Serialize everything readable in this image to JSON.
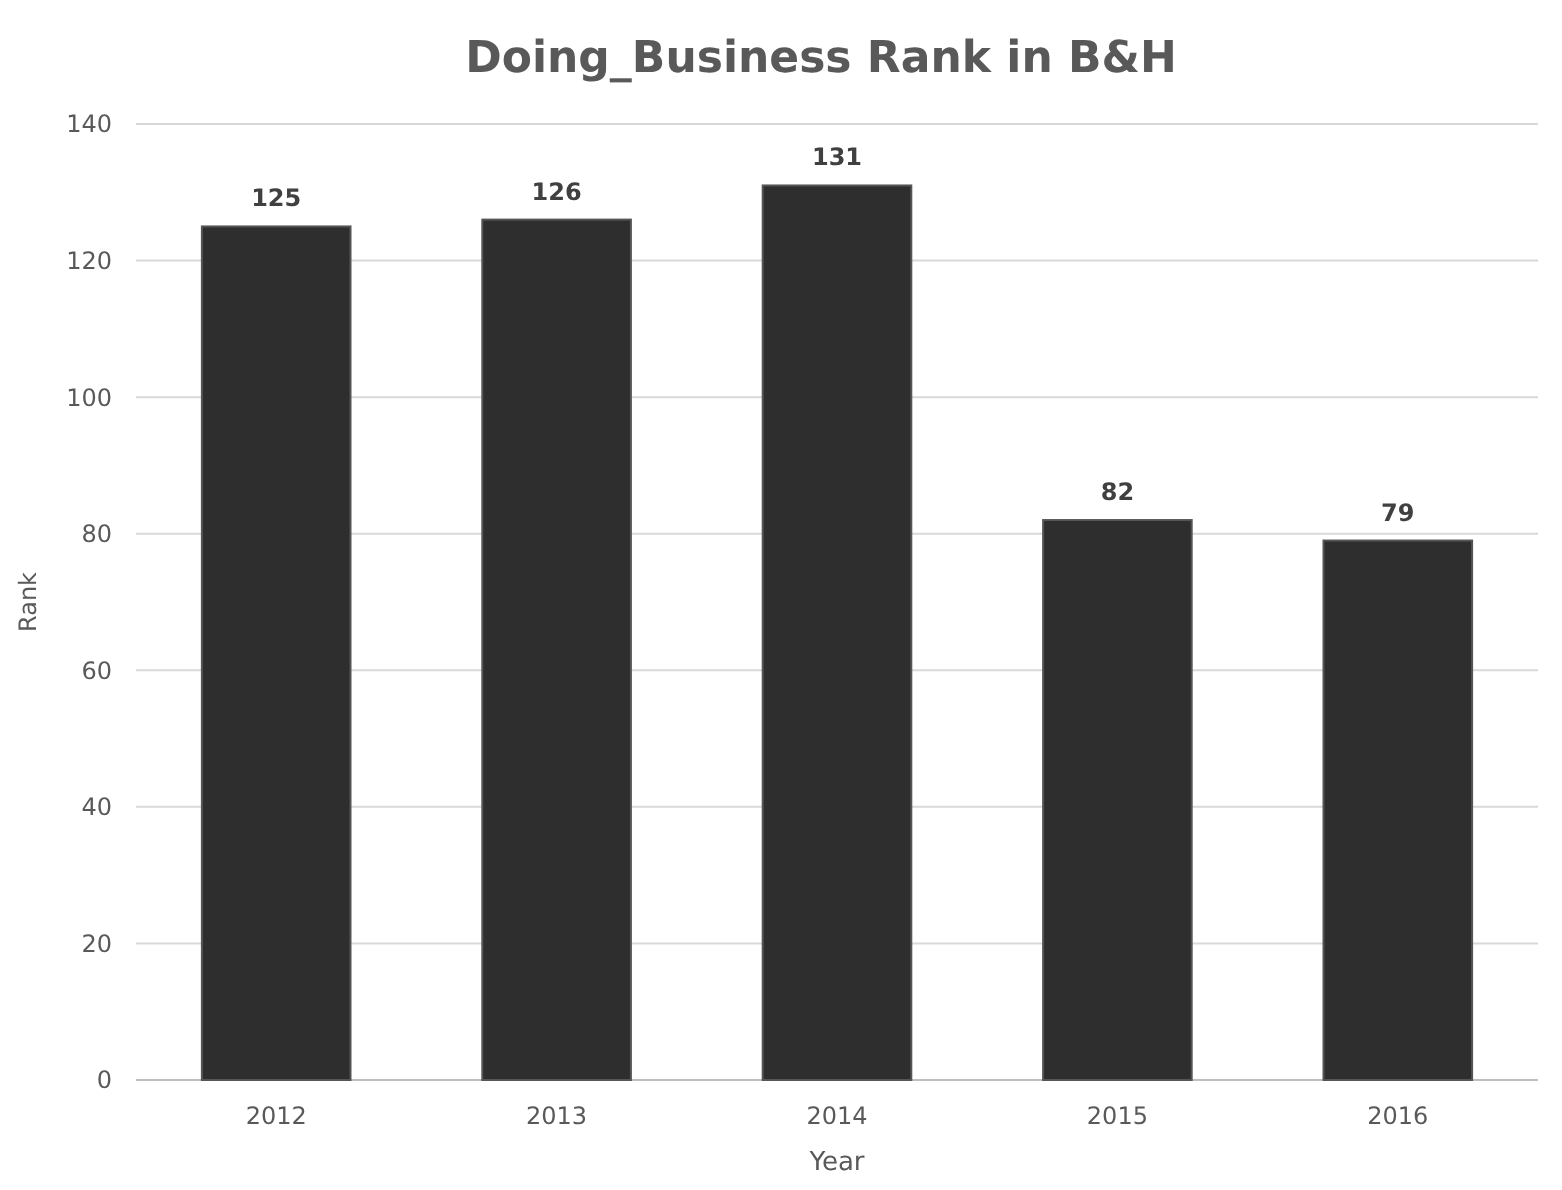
{
  "chart_data": {
    "type": "bar",
    "title": "Doing_Business Rank in B&H",
    "xlabel": "Year",
    "ylabel": "Rank",
    "categories": [
      "2012",
      "2013",
      "2014",
      "2015",
      "2016"
    ],
    "values": [
      125,
      126,
      131,
      82,
      79
    ],
    "color": "#2e2e2e",
    "ylim": [
      0,
      140
    ],
    "yticks": [
      0,
      20,
      40,
      60,
      80,
      100,
      120,
      140
    ],
    "grid": "y",
    "data_labels": true
  }
}
